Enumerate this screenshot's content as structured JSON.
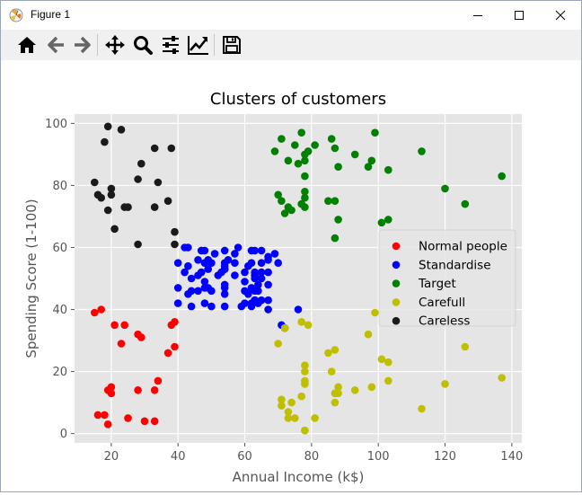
{
  "window": {
    "title": "Figure 1",
    "controls": [
      "minimize",
      "maximize",
      "close"
    ]
  },
  "toolbar": {
    "buttons": [
      {
        "name": "home",
        "icon": "home-icon"
      },
      {
        "name": "back",
        "icon": "arrow-left-icon"
      },
      {
        "name": "forward",
        "icon": "arrow-right-icon"
      },
      {
        "name": "pan",
        "icon": "move-icon"
      },
      {
        "name": "zoom",
        "icon": "magnifier-icon"
      },
      {
        "name": "configure-subplots",
        "icon": "sliders-icon"
      },
      {
        "name": "edit-axis",
        "icon": "line-chart-icon"
      },
      {
        "name": "save",
        "icon": "floppy-disk-icon"
      }
    ]
  },
  "chart_data": {
    "type": "scatter",
    "title": "Clusters of customers",
    "xlabel": "Annual Income (k$)",
    "ylabel": "Spending Score (1-100)",
    "xlim": [
      9,
      143
    ],
    "ylim": [
      -3,
      103
    ],
    "xticks": [
      20,
      40,
      60,
      80,
      100,
      120,
      140
    ],
    "yticks": [
      0,
      20,
      40,
      60,
      80,
      100
    ],
    "grid": true,
    "legend_position": "center-right",
    "series": [
      {
        "name": "Normal people",
        "color": "#ff0000",
        "points": [
          [
            15,
            39
          ],
          [
            16,
            6
          ],
          [
            17,
            40
          ],
          [
            18,
            6
          ],
          [
            19,
            3
          ],
          [
            19,
            14
          ],
          [
            20,
            15
          ],
          [
            20,
            13
          ],
          [
            21,
            35
          ],
          [
            23,
            29
          ],
          [
            24,
            35
          ],
          [
            25,
            5
          ],
          [
            28,
            14
          ],
          [
            28,
            32
          ],
          [
            29,
            31
          ],
          [
            30,
            4
          ],
          [
            33,
            4
          ],
          [
            33,
            14
          ],
          [
            34,
            17
          ],
          [
            37,
            26
          ],
          [
            38,
            35
          ],
          [
            39,
            36
          ],
          [
            39,
            28
          ]
        ]
      },
      {
        "name": "Standardise",
        "color": "#0000ff",
        "points": [
          [
            40,
            55
          ],
          [
            40,
            47
          ],
          [
            40,
            42
          ],
          [
            42,
            52
          ],
          [
            42,
            60
          ],
          [
            43,
            60
          ],
          [
            43,
            54
          ],
          [
            43,
            45
          ],
          [
            44,
            50
          ],
          [
            44,
            46
          ],
          [
            44,
            41
          ],
          [
            46,
            51
          ],
          [
            46,
            46
          ],
          [
            46,
            56
          ],
          [
            47,
            52
          ],
          [
            47,
            59
          ],
          [
            48,
            59
          ],
          [
            48,
            47
          ],
          [
            48,
            55
          ],
          [
            48,
            42
          ],
          [
            48,
            49
          ],
          [
            49,
            56
          ],
          [
            49,
            47
          ],
          [
            49,
            53
          ],
          [
            50,
            55
          ],
          [
            50,
            46
          ],
          [
            50,
            41
          ],
          [
            51,
            58
          ],
          [
            52,
            51
          ],
          [
            53,
            52
          ],
          [
            54,
            45
          ],
          [
            54,
            47
          ],
          [
            54,
            59
          ],
          [
            54,
            55
          ],
          [
            54,
            53
          ],
          [
            54,
            41
          ],
          [
            54,
            53
          ],
          [
            54,
            54
          ],
          [
            54,
            48
          ],
          [
            55,
            56
          ],
          [
            57,
            58
          ],
          [
            58,
            60
          ],
          [
            57,
            55
          ],
          [
            57,
            51
          ],
          [
            59,
            41
          ],
          [
            60,
            52
          ],
          [
            60,
            46
          ],
          [
            60,
            42
          ],
          [
            60,
            49
          ],
          [
            61,
            54
          ],
          [
            61,
            45
          ],
          [
            62,
            47
          ],
          [
            62,
            42
          ],
          [
            62,
            59
          ],
          [
            62,
            55
          ],
          [
            62,
            41
          ],
          [
            63,
            43
          ],
          [
            63,
            59
          ],
          [
            63,
            50
          ],
          [
            63,
            46
          ],
          [
            63,
            52
          ],
          [
            63,
            51
          ],
          [
            63,
            43
          ],
          [
            64,
            42
          ],
          [
            64,
            46
          ],
          [
            64,
            48
          ],
          [
            65,
            50
          ],
          [
            65,
            43
          ],
          [
            65,
            59
          ],
          [
            65,
            52
          ],
          [
            65,
            55
          ],
          [
            67,
            56
          ],
          [
            67,
            52
          ],
          [
            67,
            48
          ],
          [
            67,
            43
          ],
          [
            67,
            40
          ],
          [
            67,
            57
          ],
          [
            69,
            58
          ],
          [
            70,
            55
          ],
          [
            71,
            35
          ],
          [
            72,
            34
          ],
          [
            76,
            40
          ]
        ]
      },
      {
        "name": "Target",
        "color": "#008000",
        "points": [
          [
            69,
            91
          ],
          [
            70,
            77
          ],
          [
            71,
            95
          ],
          [
            71,
            75
          ],
          [
            72,
            71
          ],
          [
            73,
            88
          ],
          [
            73,
            73
          ],
          [
            74,
            72
          ],
          [
            75,
            93
          ],
          [
            76,
            87
          ],
          [
            77,
            97
          ],
          [
            77,
            74
          ],
          [
            78,
            90
          ],
          [
            78,
            88
          ],
          [
            78,
            76
          ],
          [
            78,
            78
          ],
          [
            78,
            73
          ],
          [
            78,
            83
          ],
          [
            79,
            91
          ],
          [
            81,
            93
          ],
          [
            85,
            75
          ],
          [
            86,
            95
          ],
          [
            87,
            63
          ],
          [
            87,
            75
          ],
          [
            87,
            92
          ],
          [
            88,
            86
          ],
          [
            88,
            69
          ],
          [
            93,
            90
          ],
          [
            97,
            86
          ],
          [
            98,
            88
          ],
          [
            99,
            97
          ],
          [
            101,
            68
          ],
          [
            103,
            85
          ],
          [
            103,
            69
          ],
          [
            113,
            91
          ],
          [
            120,
            79
          ],
          [
            126,
            74
          ],
          [
            137,
            83
          ]
        ]
      },
      {
        "name": "Carefull",
        "color": "#bfbf00",
        "points": [
          [
            70,
            29
          ],
          [
            71,
            11
          ],
          [
            71,
            9
          ],
          [
            72,
            34
          ],
          [
            73,
            5
          ],
          [
            73,
            7
          ],
          [
            74,
            10
          ],
          [
            75,
            5
          ],
          [
            77,
            12
          ],
          [
            77,
            36
          ],
          [
            78,
            22
          ],
          [
            78,
            17
          ],
          [
            78,
            20
          ],
          [
            78,
            16
          ],
          [
            78,
            1
          ],
          [
            78,
            1
          ],
          [
            79,
            35
          ],
          [
            81,
            5
          ],
          [
            85,
            26
          ],
          [
            86,
            20
          ],
          [
            87,
            27
          ],
          [
            87,
            13
          ],
          [
            87,
            10
          ],
          [
            88,
            13
          ],
          [
            88,
            15
          ],
          [
            93,
            14
          ],
          [
            97,
            32
          ],
          [
            98,
            15
          ],
          [
            99,
            39
          ],
          [
            101,
            24
          ],
          [
            103,
            17
          ],
          [
            103,
            23
          ],
          [
            113,
            8
          ],
          [
            120,
            16
          ],
          [
            126,
            28
          ],
          [
            137,
            18
          ]
        ]
      },
      {
        "name": "Careless",
        "color": "#1a1a1a",
        "points": [
          [
            15,
            81
          ],
          [
            16,
            77
          ],
          [
            17,
            76
          ],
          [
            18,
            94
          ],
          [
            19,
            99
          ],
          [
            19,
            72
          ],
          [
            20,
            77
          ],
          [
            20,
            79
          ],
          [
            21,
            66
          ],
          [
            23,
            98
          ],
          [
            24,
            73
          ],
          [
            25,
            73
          ],
          [
            28,
            82
          ],
          [
            28,
            61
          ],
          [
            29,
            87
          ],
          [
            33,
            73
          ],
          [
            33,
            92
          ],
          [
            34,
            81
          ],
          [
            37,
            75
          ],
          [
            38,
            92
          ],
          [
            39,
            61
          ],
          [
            39,
            65
          ]
        ]
      }
    ]
  }
}
